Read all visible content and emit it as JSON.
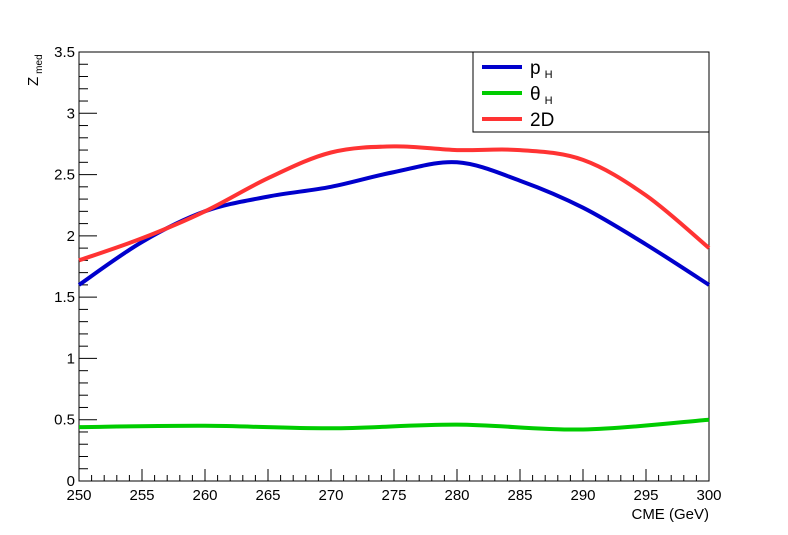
{
  "chart_data": {
    "type": "line",
    "title": "",
    "xlabel": "CME (GeV)",
    "ylabel": {
      "main": "Z",
      "sub": "med"
    },
    "xlim": [
      250,
      300
    ],
    "ylim": [
      0,
      3.5
    ],
    "xticks": [
      250,
      255,
      260,
      265,
      270,
      275,
      280,
      285,
      290,
      295,
      300
    ],
    "yticks": [
      0,
      0.5,
      1,
      1.5,
      2,
      2.5,
      3,
      3.5
    ],
    "grid": false,
    "legend_position": "top-right",
    "series": [
      {
        "name": "p",
        "subscript": "H",
        "color": "#0000cc",
        "x": [
          250,
          255,
          260,
          265,
          270,
          275,
          280,
          285,
          290,
          295,
          300
        ],
        "y": [
          1.6,
          1.95,
          2.2,
          2.32,
          2.4,
          2.52,
          2.6,
          2.45,
          2.23,
          1.93,
          1.6
        ]
      },
      {
        "name": "θ",
        "subscript": "H",
        "color": "#00cc00",
        "x": [
          250,
          260,
          270,
          280,
          290,
          300
        ],
        "y": [
          0.44,
          0.45,
          0.43,
          0.46,
          0.42,
          0.5
        ]
      },
      {
        "name": "2D",
        "subscript": "",
        "color": "#ff3333",
        "x": [
          250,
          255,
          260,
          265,
          270,
          275,
          280,
          285,
          290,
          295,
          300
        ],
        "y": [
          1.8,
          1.98,
          2.2,
          2.47,
          2.68,
          2.73,
          2.7,
          2.7,
          2.62,
          2.33,
          1.9
        ]
      }
    ]
  }
}
